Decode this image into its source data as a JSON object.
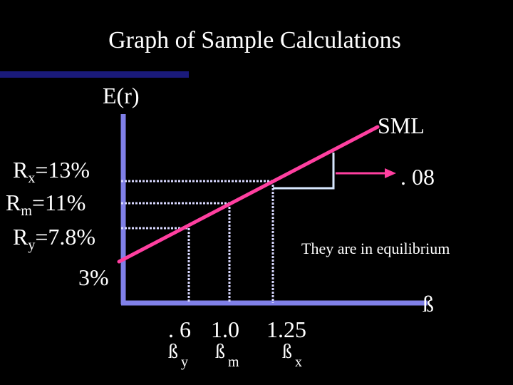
{
  "title": "Graph of Sample Calculations",
  "y_axis_label": "E(r)",
  "line_label": "SML",
  "rate_labels": [
    {
      "prefix": "R",
      "sub": "x",
      "suffix": "=13%"
    },
    {
      "prefix": "R",
      "sub": "m",
      "suffix": "=11%"
    },
    {
      "prefix": "R",
      "sub": "y",
      "suffix": "=7.8%"
    }
  ],
  "risk_free_label": "3%",
  "slope_label": ". 08",
  "note": "They are in equilibrium",
  "x_axis_symbol": "ß",
  "beta_ticks": [
    ". 6",
    "1.0",
    "1.25"
  ],
  "beta_labels": [
    {
      "symbol": "ß",
      "sub": "y"
    },
    {
      "symbol": "ß",
      "sub": "m"
    },
    {
      "symbol": "ß",
      "sub": "x"
    }
  ],
  "colors": {
    "background": "#000000",
    "axis": "#8080e8",
    "sml": "#ff3fa0",
    "guides": "#d8d8ff",
    "bar": "#1a1a7a",
    "arrow": "#ff3fa0"
  }
}
